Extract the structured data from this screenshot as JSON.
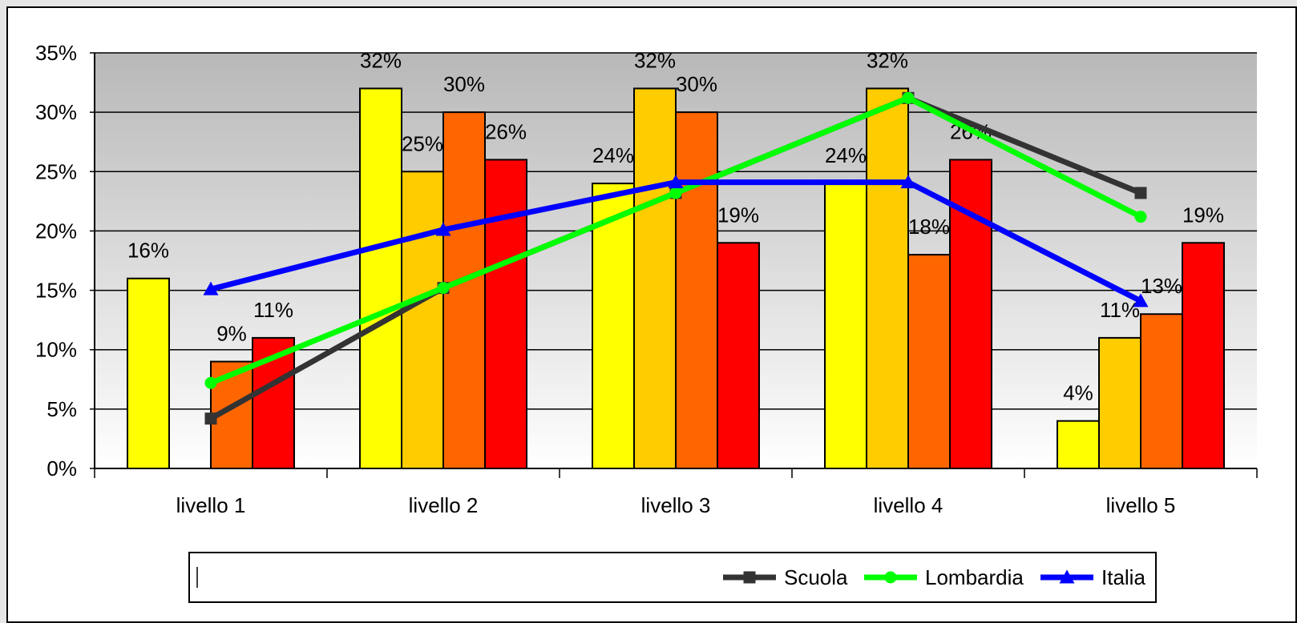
{
  "chart_data": {
    "type": "bar",
    "categories": [
      "livello 1",
      "livello 2",
      "livello 3",
      "livello 4",
      "livello 5"
    ],
    "ylim": [
      0,
      35
    ],
    "yticks": [
      0,
      5,
      10,
      15,
      20,
      25,
      30,
      35
    ],
    "ytick_labels": [
      "0%",
      "5%",
      "10%",
      "15%",
      "20%",
      "25%",
      "30%",
      "35%"
    ],
    "grid": true,
    "legend_position": "bottom",
    "bar_series": [
      {
        "color": "#FFFF00",
        "values": [
          16,
          32,
          24,
          24,
          4
        ],
        "labels": [
          "16%",
          "32%",
          "24%",
          "24%",
          "4%"
        ]
      },
      {
        "color": "#FFCC00",
        "values": [
          0,
          25,
          32,
          32,
          11
        ],
        "labels": [
          "",
          "25%",
          "32%",
          "32%",
          "11%"
        ]
      },
      {
        "color": "#FF6600",
        "values": [
          9,
          30,
          30,
          18,
          13
        ],
        "labels": [
          "9%",
          "30%",
          "30%",
          "18%",
          "13%"
        ]
      },
      {
        "color": "#FF0000",
        "values": [
          11,
          26,
          19,
          26,
          19
        ],
        "labels": [
          "11%",
          "26%",
          "19%",
          "26%",
          "19%"
        ]
      }
    ],
    "line_series": [
      {
        "name": "Scuola",
        "color": "#333333",
        "marker": "square",
        "values": [
          4.2,
          15.2,
          23.2,
          31.2,
          23.2
        ]
      },
      {
        "name": "Lombardia",
        "color": "#00FF00",
        "marker": "circle",
        "values": [
          7.2,
          15.2,
          23.2,
          31.2,
          21.2
        ]
      },
      {
        "name": "Italia",
        "color": "#0000FF",
        "marker": "triangle",
        "values": [
          15.1,
          20.1,
          24.1,
          24.1,
          14.1
        ]
      }
    ]
  }
}
